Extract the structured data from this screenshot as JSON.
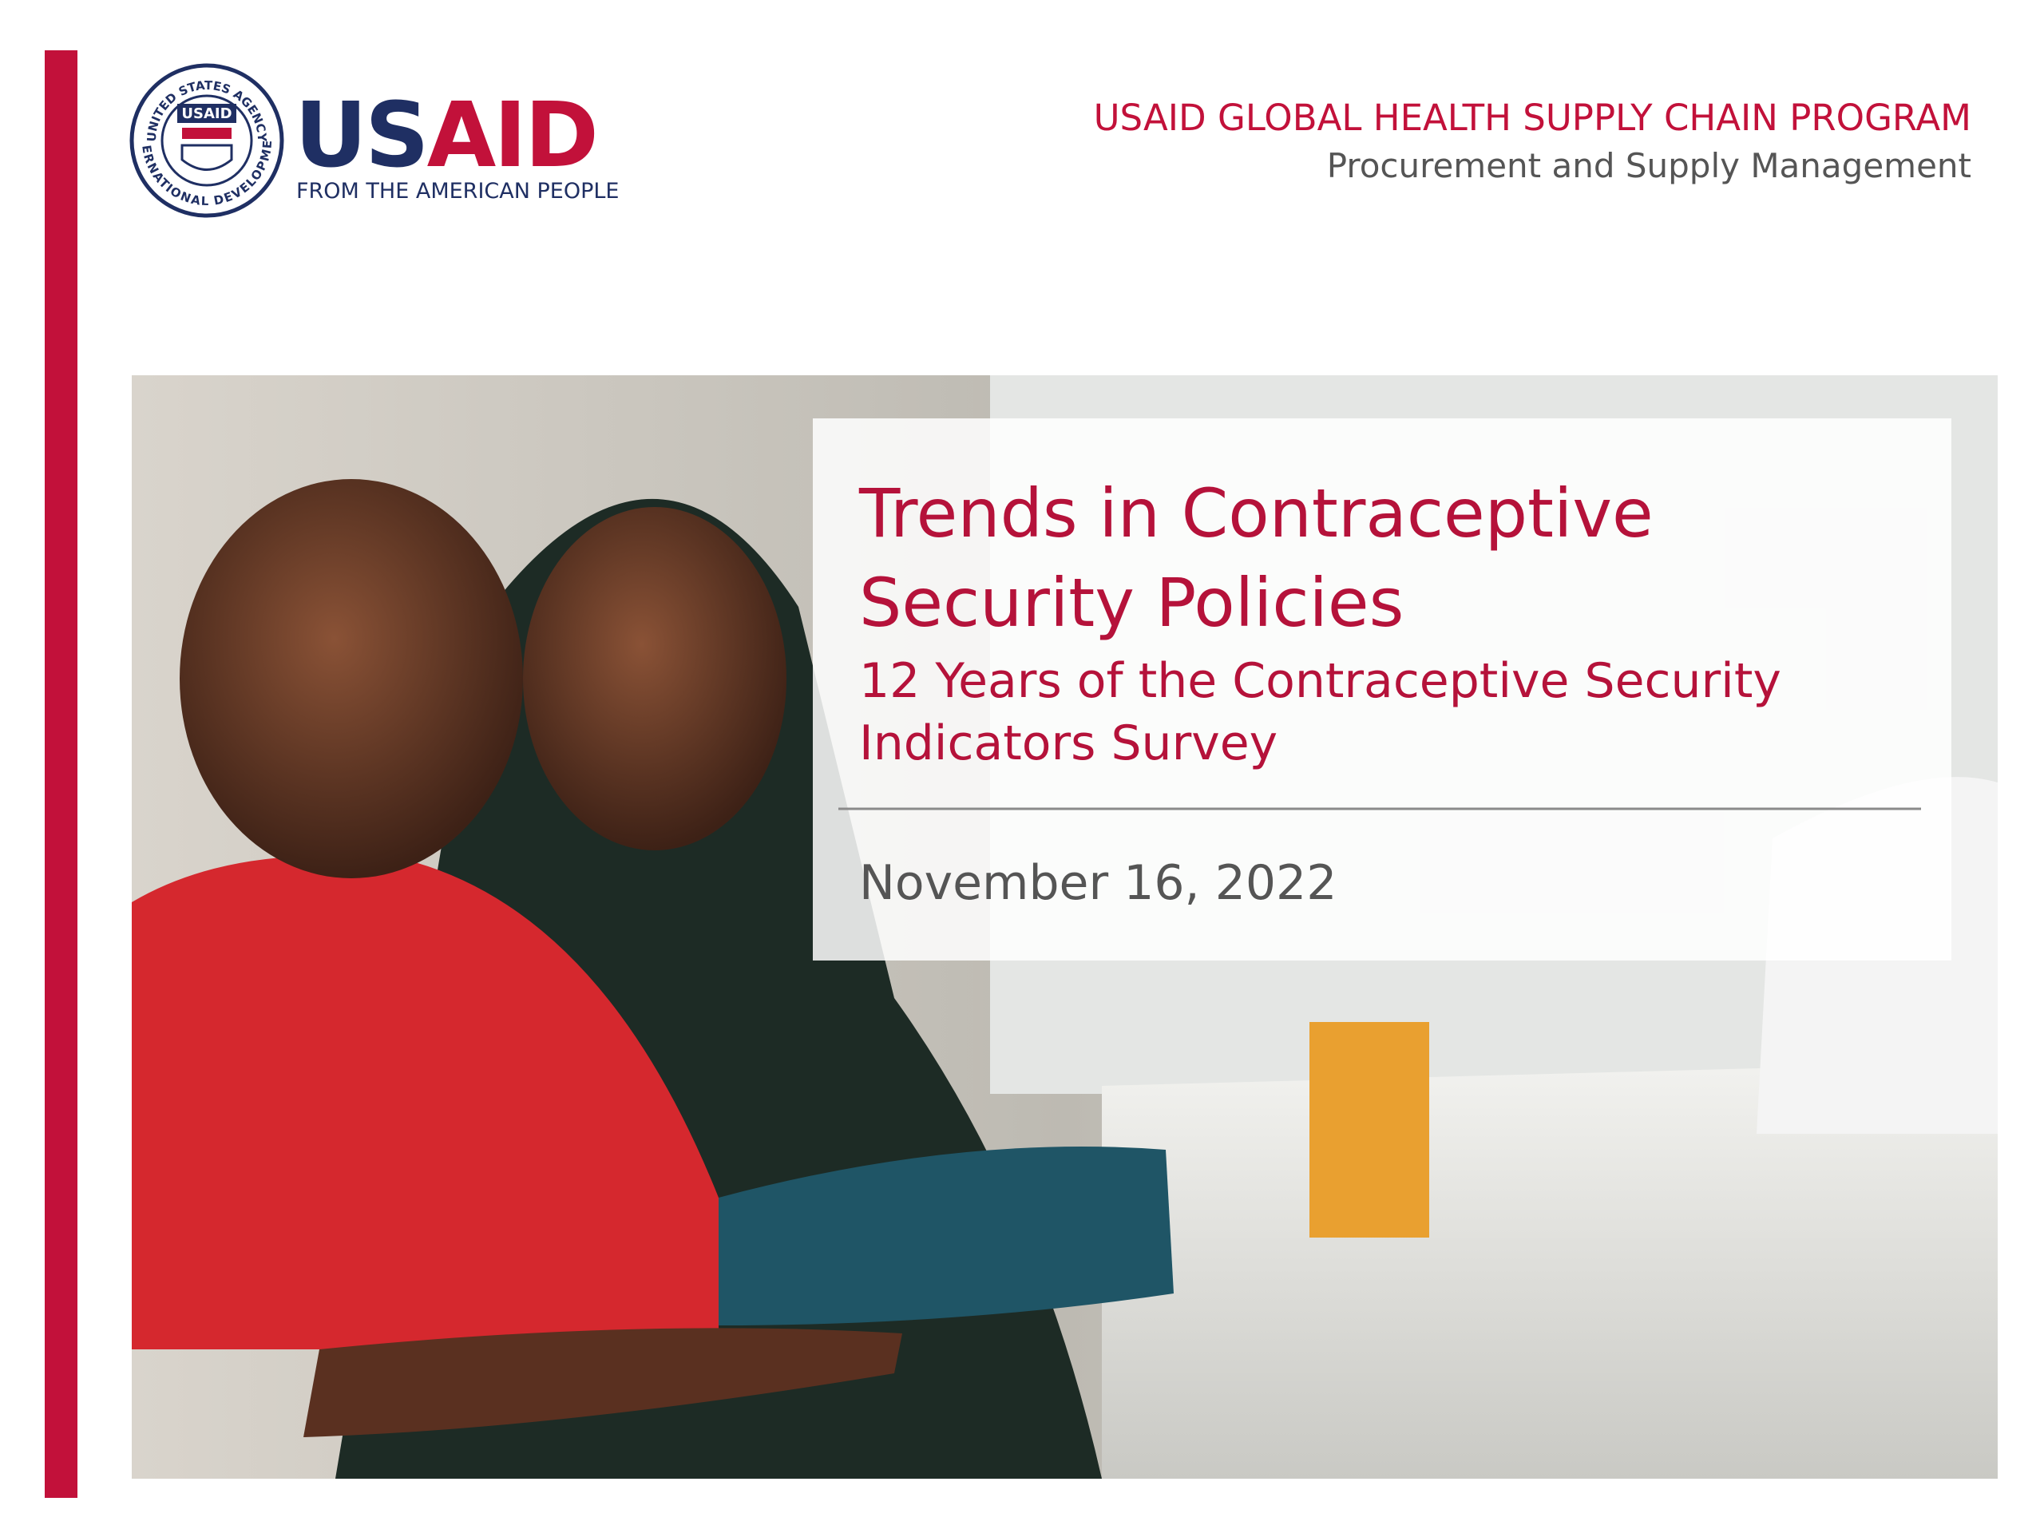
{
  "logo": {
    "seal_top": "UNITED STATES AGENCY",
    "seal_bottom": "INTERNATIONAL DEVELOPMENT",
    "seal_badge": "USAID",
    "wordmark": "USAID",
    "tagline": "FROM THE AMERICAN PEOPLE"
  },
  "header": {
    "program": "USAID GLOBAL HEALTH SUPPLY CHAIN PROGRAM",
    "project": "Procurement and Supply Management"
  },
  "slide": {
    "title_lines": [
      "Trends in Contraceptive",
      "Security Policies"
    ],
    "subtitle_lines": [
      "12 Years of the Contraceptive Security",
      "Indicators Survey"
    ],
    "date": "November 16, 2022"
  }
}
